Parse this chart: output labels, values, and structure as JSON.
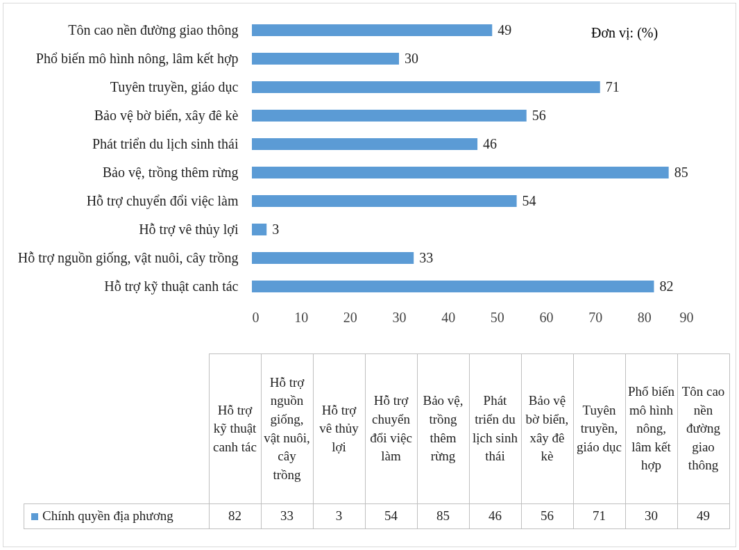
{
  "chart_data": [
    {
      "type": "bar",
      "orientation": "horizontal",
      "categories": [
        "Tôn cao nền đường giao thông",
        "Phổ biến mô hình nông, lâm kết hợp",
        "Tuyên truyền, giáo dục",
        "Bảo vệ bờ biển, xây đê kè",
        "Phát triển du lịch sinh thái",
        "Bảo vệ, trồng thêm rừng",
        "Hỗ trợ chuyển đổi việc làm",
        "Hỗ trợ vê thủy lợi",
        "Hỗ trợ nguồn giống, vật nuôi, cây trồng",
        "Hỗ trợ kỹ thuật canh tác"
      ],
      "series": [
        {
          "color": "#5b9bd5",
          "values": [
            49,
            30,
            71,
            56,
            46,
            85,
            54,
            3,
            33,
            82
          ]
        }
      ],
      "xlim": [
        0,
        90
      ],
      "xticks": [
        0,
        10,
        20,
        30,
        40,
        50,
        60,
        70,
        80,
        90
      ],
      "data_labels": true,
      "grid": false,
      "annotations": [
        "Đơn vị: (%)"
      ]
    },
    {
      "type": "other",
      "categories": [
        "Hỗ trợ kỹ thuật canh tác",
        "Hỗ trợ nguồn giống, vật nuôi, cây trồng",
        "Hỗ trợ vê thủy lợi",
        "Hỗ trợ chuyển đổi việc làm",
        "Bảo vệ, trồng thêm rừng",
        "Phát triển du lịch sinh thái",
        "Bảo vệ bờ biển, xây đê kè",
        "Tuyên truyền, giáo dục",
        "Phổ biến mô hình nông, lâm kết hợp",
        "Tôn cao nền đường giao thông"
      ],
      "series": [
        {
          "name": "Chính quyền địa phương",
          "color": "#5b9bd5",
          "values": [
            82,
            33,
            3,
            54,
            85,
            46,
            56,
            71,
            30,
            49
          ]
        }
      ],
      "data_labels": true,
      "legend": "left"
    }
  ]
}
